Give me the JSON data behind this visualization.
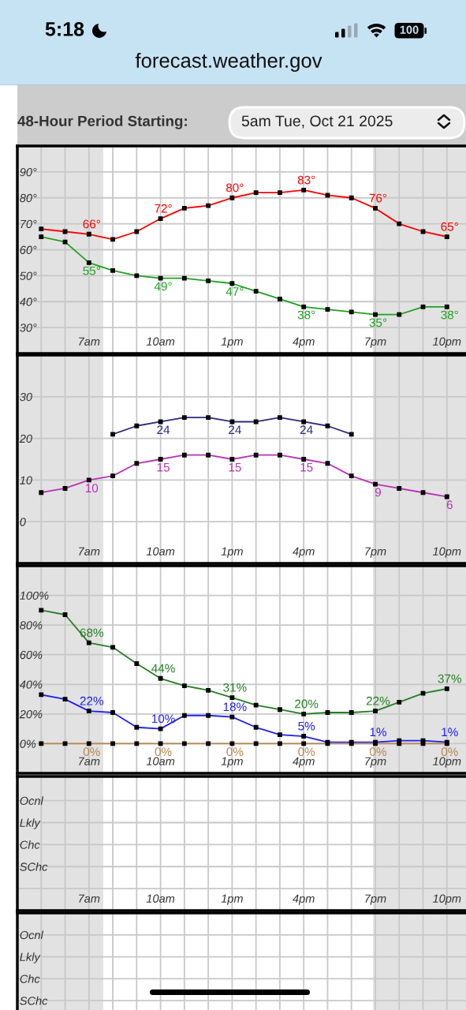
{
  "chart_data": [
    {
      "type": "line",
      "title": "48-Hour Period Starting:",
      "subtitle": "5am Tue, Oct 21 2025",
      "annotations": [
        "5:18",
        "100",
        "forecast.weather.gov"
      ],
      "x": [
        "2025-10-21T05:00",
        "2025-10-21T06:00",
        "2025-10-21T07:00",
        "2025-10-21T08:00",
        "2025-10-21T09:00",
        "2025-10-21T10:00",
        "2025-10-21T11:00",
        "2025-10-21T12:00",
        "2025-10-21T13:00",
        "2025-10-21T14:00",
        "2025-10-21T15:00",
        "2025-10-21T16:00",
        "2025-10-21T17:00",
        "2025-10-21T18:00",
        "2025-10-21T19:00",
        "2025-10-21T20:00",
        "2025-10-21T21:00",
        "2025-10-21T22:00"
      ],
      "series": [
        {
          "color": "#ff0000",
          "values": [
            68,
            67,
            66,
            64,
            67,
            72,
            76,
            77,
            80,
            82,
            82,
            83,
            81,
            80,
            76,
            70,
            67,
            65
          ],
          "value_labels": [
            null,
            null,
            "66°",
            null,
            null,
            "72°",
            null,
            null,
            "80°",
            null,
            null,
            "83°",
            null,
            null,
            "76°",
            null,
            null,
            "65°"
          ]
        },
        {
          "color": "#20a020",
          "values": [
            65,
            63,
            55,
            52,
            50,
            49,
            49,
            48,
            47,
            44,
            41,
            38,
            37,
            36,
            35,
            35,
            38,
            38
          ],
          "value_labels": [
            null,
            null,
            "55°",
            null,
            null,
            "49°",
            null,
            null,
            "47°",
            null,
            null,
            "38°",
            null,
            null,
            "35°",
            null,
            null,
            "38°"
          ]
        }
      ],
      "marker": "square",
      "line_style": "solid",
      "xlim": [
        "2025-10-21T04:00",
        "2025-10-21T22:48"
      ],
      "xticks": [
        {
          "value": "2025-10-21T05:00",
          "label": null
        },
        {
          "value": "2025-10-21T06:00",
          "label": null
        },
        {
          "value": "2025-10-21T07:00",
          "label": "7am"
        },
        {
          "value": "2025-10-21T08:00",
          "label": null
        },
        {
          "value": "2025-10-21T09:00",
          "label": null
        },
        {
          "value": "2025-10-21T10:00",
          "label": "10am"
        },
        {
          "value": "2025-10-21T11:00",
          "label": null
        },
        {
          "value": "2025-10-21T12:00",
          "label": null
        },
        {
          "value": "2025-10-21T13:00",
          "label": "1pm"
        },
        {
          "value": "2025-10-21T14:00",
          "label": null
        },
        {
          "value": "2025-10-21T15:00",
          "label": null
        },
        {
          "value": "2025-10-21T16:00",
          "label": "4pm"
        },
        {
          "value": "2025-10-21T17:00",
          "label": null
        },
        {
          "value": "2025-10-21T18:00",
          "label": null
        },
        {
          "value": "2025-10-21T19:00",
          "label": "7pm"
        },
        {
          "value": "2025-10-21T20:00",
          "label": null
        },
        {
          "value": "2025-10-21T21:00",
          "label": null
        },
        {
          "value": "2025-10-21T22:00",
          "label": "10pm"
        }
      ],
      "ylim": [
        20,
        100
      ],
      "yticks": [
        {
          "value": 30,
          "label": "30°"
        },
        {
          "value": 40,
          "label": "40°"
        },
        {
          "value": 50,
          "label": "50°"
        },
        {
          "value": 60,
          "label": "60°"
        },
        {
          "value": 70,
          "label": "70°"
        },
        {
          "value": 80,
          "label": "80°"
        },
        {
          "value": 90,
          "label": "90°"
        }
      ],
      "grid": true,
      "bands": [
        {
          "axis": "x",
          "from": "2025-10-21T04:00",
          "to": "2025-10-21T07:36",
          "color": "#e2e2e2"
        },
        {
          "axis": "x",
          "from": "2025-10-21T18:54",
          "to": "2025-10-21T22:48",
          "color": "#e2e2e2"
        }
      ]
    },
    {
      "type": "line",
      "x": [
        "2025-10-21T05:00",
        "2025-10-21T06:00",
        "2025-10-21T07:00",
        "2025-10-21T08:00",
        "2025-10-21T09:00",
        "2025-10-21T10:00",
        "2025-10-21T11:00",
        "2025-10-21T12:00",
        "2025-10-21T13:00",
        "2025-10-21T14:00",
        "2025-10-21T15:00",
        "2025-10-21T16:00",
        "2025-10-21T17:00",
        "2025-10-21T18:00",
        "2025-10-21T19:00",
        "2025-10-21T20:00",
        "2025-10-21T21:00",
        "2025-10-21T22:00"
      ],
      "series": [
        {
          "color": "#b833b8",
          "values": [
            7,
            8,
            10,
            11,
            14,
            15,
            16,
            16,
            15,
            16,
            16,
            15,
            14,
            11,
            9,
            8,
            7,
            6
          ],
          "value_labels": [
            null,
            null,
            "10",
            null,
            null,
            "15",
            null,
            null,
            "15",
            null,
            null,
            "15",
            null,
            null,
            "9",
            null,
            null,
            "6"
          ]
        },
        {
          "color": "#2a2a80",
          "values": [
            null,
            null,
            null,
            21,
            23,
            24,
            25,
            25,
            24,
            24,
            25,
            24,
            23,
            21,
            null,
            null,
            null,
            null
          ],
          "value_labels": [
            null,
            null,
            null,
            null,
            null,
            "24",
            null,
            null,
            "24",
            null,
            null,
            "24",
            null,
            null,
            null,
            null,
            null,
            null
          ]
        }
      ],
      "marker": "square",
      "line_style": "solid",
      "xlim": [
        "2025-10-21T04:00",
        "2025-10-21T22:48"
      ],
      "xticks": [
        {
          "value": "2025-10-21T05:00",
          "label": null
        },
        {
          "value": "2025-10-21T06:00",
          "label": null
        },
        {
          "value": "2025-10-21T07:00",
          "label": "7am"
        },
        {
          "value": "2025-10-21T08:00",
          "label": null
        },
        {
          "value": "2025-10-21T09:00",
          "label": null
        },
        {
          "value": "2025-10-21T10:00",
          "label": "10am"
        },
        {
          "value": "2025-10-21T11:00",
          "label": null
        },
        {
          "value": "2025-10-21T12:00",
          "label": null
        },
        {
          "value": "2025-10-21T13:00",
          "label": "1pm"
        },
        {
          "value": "2025-10-21T14:00",
          "label": null
        },
        {
          "value": "2025-10-21T15:00",
          "label": null
        },
        {
          "value": "2025-10-21T16:00",
          "label": "4pm"
        },
        {
          "value": "2025-10-21T17:00",
          "label": null
        },
        {
          "value": "2025-10-21T18:00",
          "label": null
        },
        {
          "value": "2025-10-21T19:00",
          "label": "7pm"
        },
        {
          "value": "2025-10-21T20:00",
          "label": null
        },
        {
          "value": "2025-10-21T21:00",
          "label": null
        },
        {
          "value": "2025-10-21T22:00",
          "label": "10pm"
        }
      ],
      "ylim": [
        -10,
        40
      ],
      "yticks": [
        0,
        10,
        20,
        30
      ],
      "grid": true,
      "bands": [
        {
          "axis": "x",
          "from": "2025-10-21T04:00",
          "to": "2025-10-21T07:36",
          "color": "#e2e2e2"
        },
        {
          "axis": "x",
          "from": "2025-10-21T18:54",
          "to": "2025-10-21T22:48",
          "color": "#e2e2e2"
        }
      ]
    },
    {
      "type": "line",
      "x": [
        "2025-10-21T05:00",
        "2025-10-21T06:00",
        "2025-10-21T07:00",
        "2025-10-21T08:00",
        "2025-10-21T09:00",
        "2025-10-21T10:00",
        "2025-10-21T11:00",
        "2025-10-21T12:00",
        "2025-10-21T13:00",
        "2025-10-21T14:00",
        "2025-10-21T15:00",
        "2025-10-21T16:00",
        "2025-10-21T17:00",
        "2025-10-21T18:00",
        "2025-10-21T19:00",
        "2025-10-21T20:00",
        "2025-10-21T21:00",
        "2025-10-21T22:00"
      ],
      "series": [
        {
          "color": "#238023",
          "values": [
            90,
            87,
            68,
            65,
            54,
            44,
            39,
            36,
            31,
            26,
            23,
            20,
            21,
            21,
            22,
            28,
            34,
            37
          ],
          "value_labels": [
            null,
            null,
            "68%",
            null,
            null,
            "44%",
            null,
            null,
            "31%",
            null,
            null,
            "20%",
            null,
            null,
            "22%",
            null,
            null,
            "37%"
          ]
        },
        {
          "color": "#2020f0",
          "values": [
            33,
            30,
            22,
            21,
            11,
            10,
            19,
            19,
            18,
            11,
            6,
            5,
            1,
            1,
            1,
            2,
            2,
            1
          ],
          "value_labels": [
            null,
            null,
            "22%",
            null,
            null,
            "10%",
            null,
            null,
            "18%",
            null,
            null,
            "5%",
            null,
            null,
            "1%",
            null,
            null,
            "1%"
          ]
        },
        {
          "color": "#b8864f",
          "values": [
            0,
            0,
            0,
            0,
            0,
            0,
            0,
            0,
            0,
            0,
            0,
            0,
            0,
            0,
            0,
            0,
            0,
            0
          ],
          "value_labels": [
            null,
            null,
            "0%",
            null,
            null,
            "0%",
            null,
            null,
            "0%",
            null,
            null,
            "0%",
            null,
            null,
            "0%",
            null,
            null,
            "0%"
          ]
        }
      ],
      "marker": "square",
      "line_style": "solid",
      "xlim": [
        "2025-10-21T04:00",
        "2025-10-21T22:48"
      ],
      "xticks": [
        {
          "value": "2025-10-21T05:00",
          "label": null
        },
        {
          "value": "2025-10-21T06:00",
          "label": null
        },
        {
          "value": "2025-10-21T07:00",
          "label": "7am"
        },
        {
          "value": "2025-10-21T08:00",
          "label": null
        },
        {
          "value": "2025-10-21T09:00",
          "label": null
        },
        {
          "value": "2025-10-21T10:00",
          "label": "10am"
        },
        {
          "value": "2025-10-21T11:00",
          "label": null
        },
        {
          "value": "2025-10-21T12:00",
          "label": null
        },
        {
          "value": "2025-10-21T13:00",
          "label": "1pm"
        },
        {
          "value": "2025-10-21T14:00",
          "label": null
        },
        {
          "value": "2025-10-21T15:00",
          "label": null
        },
        {
          "value": "2025-10-21T16:00",
          "label": "4pm"
        },
        {
          "value": "2025-10-21T17:00",
          "label": null
        },
        {
          "value": "2025-10-21T18:00",
          "label": null
        },
        {
          "value": "2025-10-21T19:00",
          "label": "7pm"
        },
        {
          "value": "2025-10-21T20:00",
          "label": null
        },
        {
          "value": "2025-10-21T21:00",
          "label": null
        },
        {
          "value": "2025-10-21T22:00",
          "label": "10pm"
        }
      ],
      "ylim": [
        -20,
        120
      ],
      "yticks": [
        {
          "value": 0,
          "label": "0%"
        },
        {
          "value": 20,
          "label": "20%"
        },
        {
          "value": 40,
          "label": "40%"
        },
        {
          "value": 60,
          "label": "60%"
        },
        {
          "value": 80,
          "label": "80%"
        },
        {
          "value": 100,
          "label": "100%"
        }
      ],
      "grid": true,
      "bands": [
        {
          "axis": "x",
          "from": "2025-10-21T04:00",
          "to": "2025-10-21T07:36",
          "color": "#e2e2e2"
        },
        {
          "axis": "x",
          "from": "2025-10-21T18:54",
          "to": "2025-10-21T22:48",
          "color": "#e2e2e2"
        }
      ]
    },
    {
      "type": "line",
      "orientation": "horizontal",
      "categories": [
        "Ocnl",
        "Lkly",
        "Chc",
        "SChc",
        null
      ],
      "xlim": [
        "2025-10-21T04:00",
        "2025-10-21T22:48"
      ],
      "xticks": [
        {
          "value": "2025-10-21T05:00",
          "label": null
        },
        {
          "value": "2025-10-21T06:00",
          "label": null
        },
        {
          "value": "2025-10-21T07:00",
          "label": "7am"
        },
        {
          "value": "2025-10-21T08:00",
          "label": null
        },
        {
          "value": "2025-10-21T09:00",
          "label": null
        },
        {
          "value": "2025-10-21T10:00",
          "label": "10am"
        },
        {
          "value": "2025-10-21T11:00",
          "label": null
        },
        {
          "value": "2025-10-21T12:00",
          "label": null
        },
        {
          "value": "2025-10-21T13:00",
          "label": "1pm"
        },
        {
          "value": "2025-10-21T14:00",
          "label": null
        },
        {
          "value": "2025-10-21T15:00",
          "label": null
        },
        {
          "value": "2025-10-21T16:00",
          "label": "4pm"
        },
        {
          "value": "2025-10-21T17:00",
          "label": null
        },
        {
          "value": "2025-10-21T18:00",
          "label": null
        },
        {
          "value": "2025-10-21T19:00",
          "label": "7pm"
        },
        {
          "value": "2025-10-21T20:00",
          "label": null
        },
        {
          "value": "2025-10-21T21:00",
          "label": null
        },
        {
          "value": "2025-10-21T22:00",
          "label": "10pm"
        }
      ],
      "grid": true,
      "bands": [
        {
          "axis": "x",
          "from": "2025-10-21T04:00",
          "to": "2025-10-21T07:36",
          "color": "#e2e2e2"
        },
        {
          "axis": "x",
          "from": "2025-10-21T18:54",
          "to": "2025-10-21T22:48",
          "color": "#e2e2e2"
        }
      ]
    },
    {
      "type": "line",
      "orientation": "horizontal",
      "categories": [
        "Ocnl",
        "Lkly",
        "Chc",
        "SChc"
      ],
      "xlim": [
        "2025-10-21T04:00",
        "2025-10-21T22:48"
      ],
      "xticks": [
        {
          "value": "2025-10-21T05:00",
          "label": null
        },
        {
          "value": "2025-10-21T06:00",
          "label": null
        },
        {
          "value": "2025-10-21T07:00",
          "label": null
        },
        {
          "value": "2025-10-21T08:00",
          "label": null
        },
        {
          "value": "2025-10-21T09:00",
          "label": null
        },
        {
          "value": "2025-10-21T10:00",
          "label": null
        },
        {
          "value": "2025-10-21T11:00",
          "label": null
        },
        {
          "value": "2025-10-21T12:00",
          "label": null
        },
        {
          "value": "2025-10-21T13:00",
          "label": null
        },
        {
          "value": "2025-10-21T14:00",
          "label": null
        },
        {
          "value": "2025-10-21T15:00",
          "label": null
        },
        {
          "value": "2025-10-21T16:00",
          "label": null
        },
        {
          "value": "2025-10-21T17:00",
          "label": null
        },
        {
          "value": "2025-10-21T18:00",
          "label": null
        },
        {
          "value": "2025-10-21T19:00",
          "label": null
        },
        {
          "value": "2025-10-21T20:00",
          "label": null
        },
        {
          "value": "2025-10-21T21:00",
          "label": null
        },
        {
          "value": "2025-10-21T22:00",
          "label": null
        }
      ],
      "tick_labels": "y",
      "grid": true,
      "bands": [
        {
          "axis": "x",
          "from": "2025-10-21T04:00",
          "to": "2025-10-21T07:36",
          "color": "#e2e2e2"
        },
        {
          "axis": "x",
          "from": "2025-10-21T18:54",
          "to": "2025-10-21T22:48",
          "color": "#e2e2e2"
        }
      ]
    }
  ]
}
